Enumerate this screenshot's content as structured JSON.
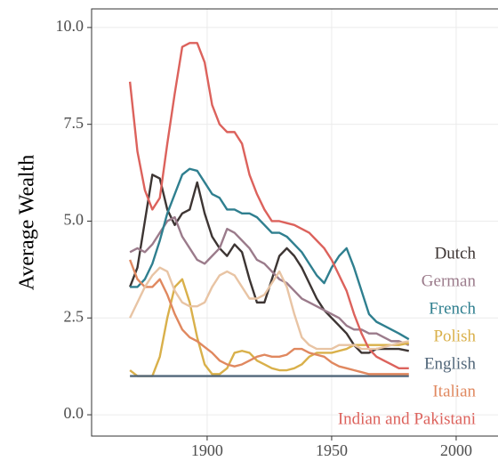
{
  "chart_data": {
    "type": "line",
    "y_label": "Average Wealth",
    "x": [
      1869,
      1872,
      1875,
      1878,
      1881,
      1884,
      1887,
      1890,
      1893,
      1896,
      1899,
      1902,
      1905,
      1908,
      1911,
      1914,
      1917,
      1920,
      1923,
      1926,
      1929,
      1932,
      1935,
      1938,
      1941,
      1944,
      1947,
      1950,
      1953,
      1956,
      1959,
      1962,
      1965,
      1968,
      1971,
      1974,
      1977,
      1981
    ],
    "series": [
      {
        "name": "Dutch",
        "color": "#3d3533",
        "values": [
          3.3,
          3.8,
          5.0,
          6.2,
          6.1,
          5.3,
          4.9,
          5.2,
          5.3,
          6.0,
          5.2,
          4.6,
          4.3,
          4.1,
          4.4,
          4.2,
          3.5,
          2.9,
          2.9,
          3.5,
          4.1,
          4.3,
          4.1,
          3.8,
          3.4,
          3.0,
          2.7,
          2.5,
          2.3,
          2.1,
          1.8,
          1.6,
          1.6,
          1.7,
          1.7,
          1.7,
          1.7,
          1.65
        ]
      },
      {
        "name": "German",
        "color": "#9b7b8b",
        "values": [
          4.2,
          4.3,
          4.2,
          4.4,
          4.7,
          5.0,
          5.1,
          4.6,
          4.3,
          4.0,
          3.9,
          4.1,
          4.3,
          4.8,
          4.7,
          4.5,
          4.3,
          4.0,
          3.9,
          3.7,
          3.5,
          3.4,
          3.2,
          3.0,
          2.9,
          2.8,
          2.7,
          2.6,
          2.5,
          2.3,
          2.2,
          2.2,
          2.1,
          2.1,
          2.0,
          1.9,
          1.9,
          1.8
        ]
      },
      {
        "name": "French",
        "color": "#2f7f8f",
        "values": [
          3.3,
          3.3,
          3.5,
          3.9,
          4.5,
          5.2,
          5.7,
          6.2,
          6.35,
          6.3,
          6.0,
          5.7,
          5.6,
          5.3,
          5.3,
          5.2,
          5.2,
          5.1,
          4.9,
          4.7,
          4.7,
          4.6,
          4.4,
          4.2,
          3.9,
          3.6,
          3.4,
          3.8,
          4.1,
          4.3,
          3.8,
          3.2,
          2.6,
          2.4,
          2.3,
          2.2,
          2.1,
          1.95
        ]
      },
      {
        "name": "Polish",
        "color": "#d9b04a",
        "values": [
          1.15,
          1.0,
          1.0,
          1.0,
          1.5,
          2.5,
          3.3,
          3.5,
          2.9,
          2.0,
          1.3,
          1.05,
          1.05,
          1.2,
          1.6,
          1.65,
          1.6,
          1.4,
          1.3,
          1.2,
          1.15,
          1.15,
          1.2,
          1.3,
          1.5,
          1.6,
          1.6,
          1.6,
          1.65,
          1.7,
          1.8,
          1.8,
          1.8,
          1.8,
          1.8,
          1.8,
          1.8,
          1.85
        ]
      },
      {
        "name": "English",
        "color": "#52677a",
        "values": [
          1.0,
          1.0,
          1.0,
          1.0,
          1.0,
          1.0,
          1.0,
          1.0,
          1.0,
          1.0,
          1.0,
          1.0,
          1.0,
          1.0,
          1.0,
          1.0,
          1.0,
          1.0,
          1.0,
          1.0,
          1.0,
          1.0,
          1.0,
          1.0,
          1.0,
          1.0,
          1.0,
          1.0,
          1.0,
          1.0,
          1.0,
          1.0,
          1.0,
          1.0,
          1.0,
          1.0,
          1.0,
          1.0
        ]
      },
      {
        "name": "Italian",
        "color": "#e0885f",
        "values": [
          4.0,
          3.5,
          3.3,
          3.3,
          3.5,
          3.1,
          2.6,
          2.2,
          2.0,
          1.9,
          1.75,
          1.6,
          1.4,
          1.3,
          1.25,
          1.3,
          1.4,
          1.5,
          1.55,
          1.5,
          1.5,
          1.55,
          1.7,
          1.7,
          1.6,
          1.55,
          1.5,
          1.35,
          1.25,
          1.2,
          1.15,
          1.1,
          1.05,
          1.05,
          1.05,
          1.05,
          1.05,
          1.05
        ]
      },
      {
        "name": "Indian and Pakistani",
        "color": "#dc625c",
        "values": [
          8.6,
          6.8,
          5.8,
          5.3,
          5.6,
          7.0,
          8.3,
          9.5,
          9.6,
          9.6,
          9.1,
          8.0,
          7.5,
          7.3,
          7.3,
          7.0,
          6.2,
          5.7,
          5.3,
          5.0,
          5.0,
          4.95,
          4.9,
          4.8,
          4.7,
          4.5,
          4.3,
          4.0,
          3.6,
          3.2,
          2.6,
          2.1,
          1.7,
          1.5,
          1.4,
          1.3,
          1.2,
          1.2
        ]
      },
      {
        "color": "#e8c4a4",
        "values": [
          2.5,
          2.9,
          3.3,
          3.6,
          3.8,
          3.7,
          3.2,
          2.9,
          2.8,
          2.8,
          2.9,
          3.3,
          3.6,
          3.7,
          3.6,
          3.3,
          3.0,
          3.0,
          3.1,
          3.4,
          3.7,
          3.3,
          2.6,
          2.0,
          1.8,
          1.7,
          1.7,
          1.7,
          1.8,
          1.8,
          1.8,
          1.7,
          1.7,
          1.7,
          1.75,
          1.8,
          1.85,
          1.9
        ]
      }
    ],
    "xlim": [
      1853.6,
      2016.8
    ],
    "ylim": [
      -0.55,
      10.48
    ],
    "xticks": [
      1900,
      1950,
      2000
    ],
    "yticks": [
      {
        "value": 0,
        "label": "0.0"
      },
      2.5,
      {
        "value": 5,
        "label": "5.0"
      },
      7.5,
      {
        "value": 10,
        "label": "10.0"
      }
    ],
    "grid": true
  }
}
